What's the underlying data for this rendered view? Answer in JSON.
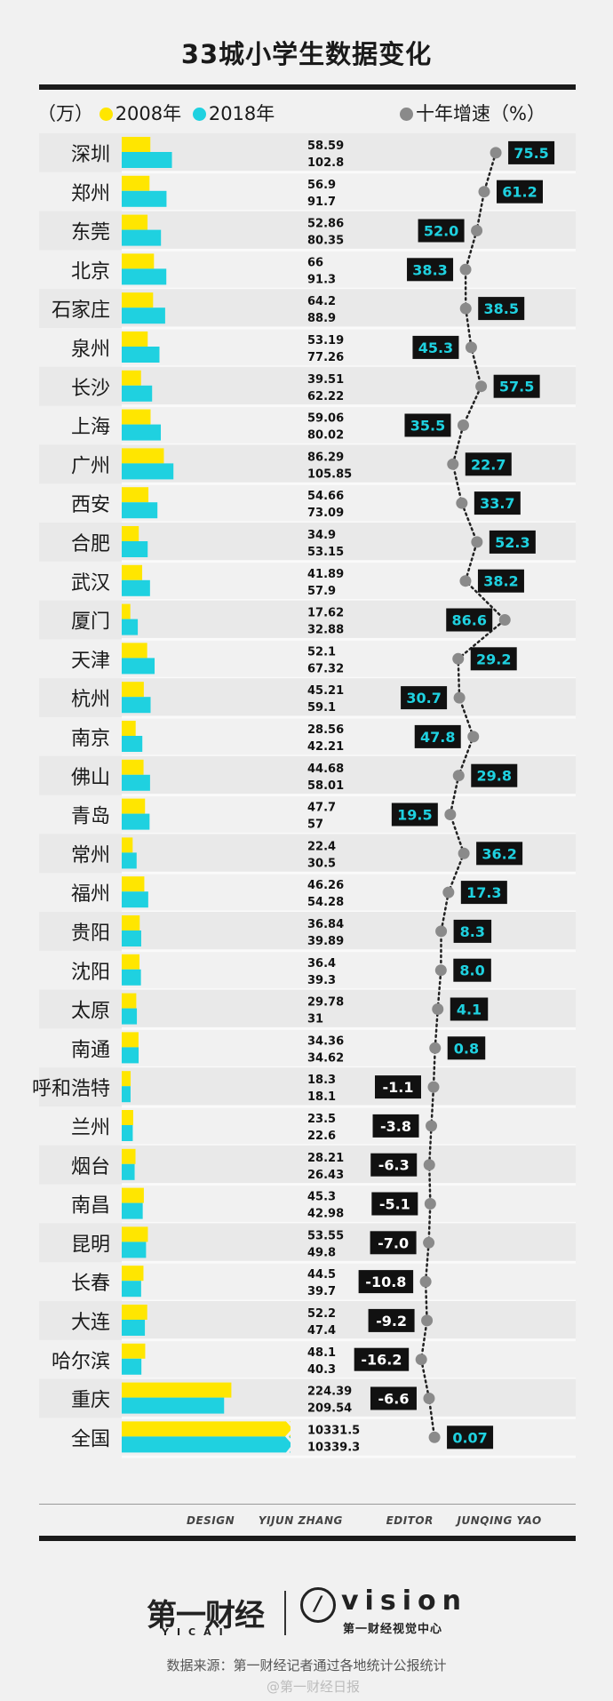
{
  "chart_data": {
    "type": "bar",
    "title": "33城小学生数据变化",
    "unit_label": "（万）",
    "legend": [
      {
        "name": "2008年",
        "color": "#ffe600"
      },
      {
        "name": "2018年",
        "color": "#1fd1e0"
      },
      {
        "name": "十年增速（%）",
        "color": "#8a8a8a"
      }
    ],
    "categories": [
      "深圳",
      "郑州",
      "东莞",
      "北京",
      "石家庄",
      "泉州",
      "长沙",
      "上海",
      "广州",
      "西安",
      "合肥",
      "武汉",
      "厦门",
      "天津",
      "杭州",
      "南京",
      "佛山",
      "青岛",
      "常州",
      "福州",
      "贵阳",
      "沈阳",
      "太原",
      "南通",
      "呼和浩特",
      "兰州",
      "烟台",
      "南昌",
      "昆明",
      "长春",
      "大连",
      "哈尔滨",
      "重庆",
      "全国"
    ],
    "series": [
      {
        "name": "2008年",
        "values": [
          58.59,
          56.9,
          52.86,
          66,
          64.2,
          53.19,
          39.51,
          59.06,
          86.29,
          54.66,
          34.9,
          41.89,
          17.62,
          52.1,
          45.21,
          28.56,
          44.68,
          47.7,
          22.4,
          46.26,
          36.84,
          36.4,
          29.78,
          34.36,
          18.3,
          23.5,
          28.21,
          45.3,
          53.55,
          44.5,
          52.2,
          48.1,
          224.39,
          10331.5
        ]
      },
      {
        "name": "2018年",
        "values": [
          102.8,
          91.7,
          80.35,
          91.3,
          88.9,
          77.26,
          62.22,
          80.02,
          105.85,
          73.09,
          53.15,
          57.9,
          32.88,
          67.32,
          59.1,
          42.21,
          58.01,
          57,
          30.5,
          54.28,
          39.89,
          39.3,
          31,
          34.62,
          18.1,
          22.6,
          26.43,
          42.98,
          49.8,
          39.7,
          47.4,
          40.3,
          209.54,
          10339.3
        ]
      },
      {
        "name": "十年增速（%）",
        "values": [
          75.5,
          61.2,
          52.0,
          38.3,
          38.5,
          45.3,
          57.5,
          35.5,
          22.7,
          33.7,
          52.3,
          38.2,
          86.6,
          29.2,
          30.7,
          47.8,
          29.8,
          19.5,
          36.2,
          17.3,
          8.3,
          8.0,
          4.1,
          0.8,
          -1.1,
          -3.8,
          -6.3,
          -5.1,
          -7.0,
          -10.8,
          -9.2,
          -16.2,
          -6.6,
          0.07
        ]
      }
    ],
    "value_labels_2008": [
      "58.59",
      "56.9",
      "52.86",
      "66",
      "64.2",
      "53.19",
      "39.51",
      "59.06",
      "86.29",
      "54.66",
      "34.9",
      "41.89",
      "17.62",
      "52.1",
      "45.21",
      "28.56",
      "44.68",
      "47.7",
      "22.4",
      "46.26",
      "36.84",
      "36.4",
      "29.78",
      "34.36",
      "18.3",
      "23.5",
      "28.21",
      "45.3",
      "53.55",
      "44.5",
      "52.2",
      "48.1",
      "224.39",
      "10331.5"
    ],
    "value_labels_2018": [
      "102.8",
      "91.7",
      "80.35",
      "91.3",
      "88.9",
      "77.26",
      "62.22",
      "80.02",
      "105.85",
      "73.09",
      "53.15",
      "57.9",
      "32.88",
      "67.32",
      "59.1",
      "42.21",
      "58.01",
      "57",
      "30.5",
      "54.28",
      "39.89",
      "39.3",
      "31",
      "34.62",
      "18.1",
      "22.6",
      "26.43",
      "42.98",
      "49.8",
      "39.7",
      "47.4",
      "40.3",
      "209.54",
      "10339.3"
    ],
    "growth_labels": [
      "75.5",
      "61.2",
      "52.0",
      "38.3",
      "38.5",
      "45.3",
      "57.5",
      "35.5",
      "22.7",
      "33.7",
      "52.3",
      "38.2",
      "86.6",
      "29.2",
      "30.7",
      "47.8",
      "29.8",
      "19.5",
      "36.2",
      "17.3",
      "8.3",
      "8.0",
      "4.1",
      "0.8",
      "-1.1",
      "-3.8",
      "-6.3",
      "-5.1",
      "-7.0",
      "-10.8",
      "-9.2",
      "-16.2",
      "-6.6",
      "0.07"
    ],
    "growth_label_side": [
      "right",
      "right",
      "left",
      "left",
      "right",
      "left",
      "right",
      "left",
      "right",
      "right",
      "right",
      "right",
      "left",
      "right",
      "left",
      "left",
      "right",
      "left",
      "right",
      "right",
      "right",
      "right",
      "right",
      "right",
      "left",
      "left",
      "left",
      "left",
      "left",
      "left",
      "left",
      "left",
      "left",
      "right"
    ],
    "truncated_category": "全国",
    "bar_xlim": [
      0,
      230
    ]
  },
  "footer": {
    "design_label": "DESIGN",
    "design_name": "YIJUN ZHANG",
    "editor_label": "EDITOR",
    "editor_name": "JUNQING YAO",
    "brand_cn": "第一财经",
    "brand_en": "YICAI",
    "vision_en": "vision",
    "vision_cn": "第一财经视觉中心",
    "source": "数据来源：第一财经记者通过各地统计公报统计",
    "watermark": "@第一财经日报"
  },
  "colors": {
    "y2008": "#ffe600",
    "y2018": "#1fd1e0",
    "growth": "#8a8a8a",
    "label_bg": "#111111"
  }
}
